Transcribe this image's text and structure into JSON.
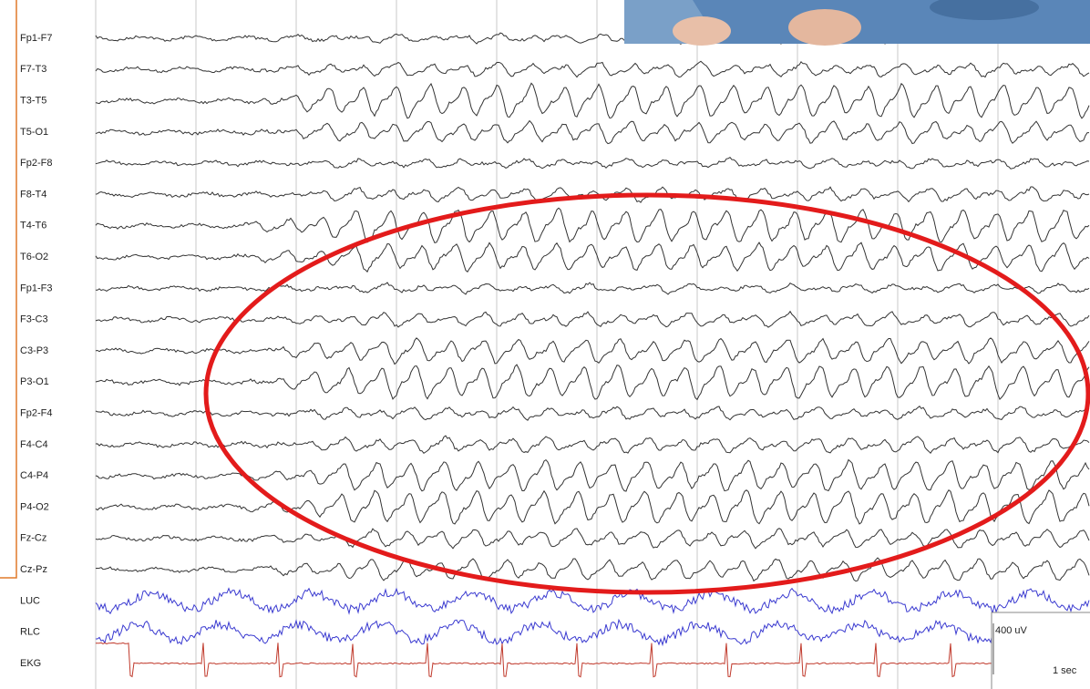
{
  "channels": [
    "Fp1-F7",
    "F7-T3",
    "T3-T5",
    "T5-O1",
    "Fp2-F8",
    "F8-T4",
    "T4-T6",
    "T6-O2",
    "Fp1-F3",
    "F3-C3",
    "C3-P3",
    "P3-O1",
    "Fp2-F4",
    "F4-C4",
    "C4-P4",
    "P4-O2",
    "Fz-Cz",
    "Cz-Pz",
    "LUC",
    "RLC",
    "EKG"
  ],
  "scale": {
    "amplitude": "400 uV",
    "time": "1 sec"
  }
}
